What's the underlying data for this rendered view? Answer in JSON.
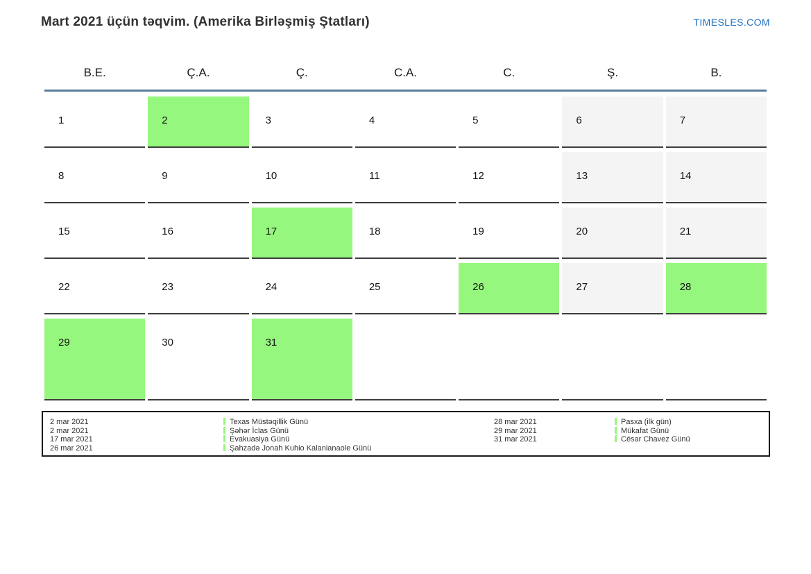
{
  "title": "Mart 2021 üçün təqvim. (Amerika Birləşmiş Ştatları)",
  "site_link": "TIMESLES.COM",
  "weekdays": [
    "B.E.",
    "Ç.A.",
    "Ç.",
    "C.A.",
    "C.",
    "Ş.",
    "B."
  ],
  "colors": {
    "holiday_green": "#96f77e",
    "weekend_gray": "#f4f4f4",
    "header_line_blue": "#5a7a9e",
    "cell_border": "#3d3d3d",
    "link_blue": "#1d6fc1"
  },
  "weeks": [
    [
      {
        "day": "1",
        "type": "normal"
      },
      {
        "day": "2",
        "type": "holiday"
      },
      {
        "day": "3",
        "type": "normal"
      },
      {
        "day": "4",
        "type": "normal"
      },
      {
        "day": "5",
        "type": "normal"
      },
      {
        "day": "6",
        "type": "weekend"
      },
      {
        "day": "7",
        "type": "weekend"
      }
    ],
    [
      {
        "day": "8",
        "type": "normal"
      },
      {
        "day": "9",
        "type": "normal"
      },
      {
        "day": "10",
        "type": "normal"
      },
      {
        "day": "11",
        "type": "normal"
      },
      {
        "day": "12",
        "type": "normal"
      },
      {
        "day": "13",
        "type": "weekend"
      },
      {
        "day": "14",
        "type": "weekend"
      }
    ],
    [
      {
        "day": "15",
        "type": "normal"
      },
      {
        "day": "16",
        "type": "normal"
      },
      {
        "day": "17",
        "type": "holiday"
      },
      {
        "day": "18",
        "type": "normal"
      },
      {
        "day": "19",
        "type": "normal"
      },
      {
        "day": "20",
        "type": "weekend"
      },
      {
        "day": "21",
        "type": "weekend"
      }
    ],
    [
      {
        "day": "22",
        "type": "normal"
      },
      {
        "day": "23",
        "type": "normal"
      },
      {
        "day": "24",
        "type": "normal"
      },
      {
        "day": "25",
        "type": "normal"
      },
      {
        "day": "26",
        "type": "holiday"
      },
      {
        "day": "27",
        "type": "weekend"
      },
      {
        "day": "28",
        "type": "holiday"
      }
    ],
    [
      {
        "day": "29",
        "type": "holiday"
      },
      {
        "day": "30",
        "type": "normal"
      },
      {
        "day": "31",
        "type": "holiday"
      },
      {
        "day": "",
        "type": "empty"
      },
      {
        "day": "",
        "type": "empty"
      },
      {
        "day": "",
        "type": "empty"
      },
      {
        "day": "",
        "type": "empty"
      }
    ]
  ],
  "legend": {
    "left": [
      {
        "date": "2 mar 2021",
        "name": "Texas Müstəqillik Günü"
      },
      {
        "date": "2 mar 2021",
        "name": "Şəhər İclas Günü"
      },
      {
        "date": "17 mar 2021",
        "name": "Evakuasiya Günü"
      },
      {
        "date": "26 mar 2021",
        "name": "Şahzadə Jonah Kuhio Kalanianaole Günü"
      }
    ],
    "right": [
      {
        "date": "28 mar 2021",
        "name": "Pasxa (ilk gün)"
      },
      {
        "date": "29 mar 2021",
        "name": "Mükafat Günü"
      },
      {
        "date": "31 mar 2021",
        "name": "César Chavez Günü"
      }
    ]
  }
}
